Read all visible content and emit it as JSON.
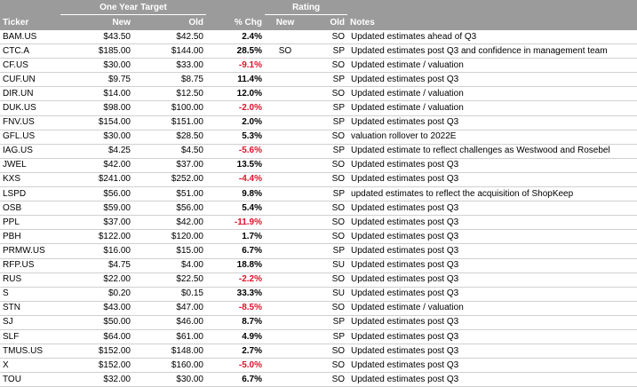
{
  "header": {
    "one_year_target": "One Year Target",
    "rating": "Rating",
    "ticker": "Ticker",
    "new": "New",
    "old": "Old",
    "pct_chg": "% Chg",
    "rating_new": "New",
    "rating_old": "Old",
    "notes": "Notes"
  },
  "rows": [
    {
      "ticker": "BAM.US",
      "new": "$43.50",
      "old": "$42.50",
      "chg": "2.4%",
      "negative": false,
      "rating_new": "",
      "rating_old": "SO",
      "notes": "Updated estimates ahead of Q3"
    },
    {
      "ticker": "CTC.A",
      "new": "$185.00",
      "old": "$144.00",
      "chg": "28.5%",
      "negative": false,
      "rating_new": "SO",
      "rating_old": "SP",
      "notes": "Updated estimates post Q3 and confidence in management team"
    },
    {
      "ticker": "CF.US",
      "new": "$30.00",
      "old": "$33.00",
      "chg": "-9.1%",
      "negative": true,
      "rating_new": "",
      "rating_old": "SO",
      "notes": "Updated estimate / valuation"
    },
    {
      "ticker": "CUF.UN",
      "new": "$9.75",
      "old": "$8.75",
      "chg": "11.4%",
      "negative": false,
      "rating_new": "",
      "rating_old": "SP",
      "notes": "Updated estimates post Q3"
    },
    {
      "ticker": "DIR.UN",
      "new": "$14.00",
      "old": "$12.50",
      "chg": "12.0%",
      "negative": false,
      "rating_new": "",
      "rating_old": "SO",
      "notes": "Updated estimate / valuation"
    },
    {
      "ticker": "DUK.US",
      "new": "$98.00",
      "old": "$100.00",
      "chg": "-2.0%",
      "negative": true,
      "rating_new": "",
      "rating_old": "SP",
      "notes": "Updated estimate / valuation"
    },
    {
      "ticker": "FNV.US",
      "new": "$154.00",
      "old": "$151.00",
      "chg": "2.0%",
      "negative": false,
      "rating_new": "",
      "rating_old": "SP",
      "notes": "Updated estimates post Q3"
    },
    {
      "ticker": "GFL.US",
      "new": "$30.00",
      "old": "$28.50",
      "chg": "5.3%",
      "negative": false,
      "rating_new": "",
      "rating_old": "SO",
      "notes": "valuation rollover to 2022E"
    },
    {
      "ticker": "IAG.US",
      "new": "$4.25",
      "old": "$4.50",
      "chg": "-5.6%",
      "negative": true,
      "rating_new": "",
      "rating_old": "SP",
      "notes": "Updated estimate to reflect challenges as Westwood and Rosebel"
    },
    {
      "ticker": "JWEL",
      "new": "$42.00",
      "old": "$37.00",
      "chg": "13.5%",
      "negative": false,
      "rating_new": "",
      "rating_old": "SO",
      "notes": "Updated estimates post Q3"
    },
    {
      "ticker": "KXS",
      "new": "$241.00",
      "old": "$252.00",
      "chg": "-4.4%",
      "negative": true,
      "rating_new": "",
      "rating_old": "SO",
      "notes": "Updated estimates post Q3"
    },
    {
      "ticker": "LSPD",
      "new": "$56.00",
      "old": "$51.00",
      "chg": "9.8%",
      "negative": false,
      "rating_new": "",
      "rating_old": "SP",
      "notes": "updated estimates to reflect the acquisition of ShopKeep"
    },
    {
      "ticker": "OSB",
      "new": "$59.00",
      "old": "$56.00",
      "chg": "5.4%",
      "negative": false,
      "rating_new": "",
      "rating_old": "SO",
      "notes": "Updated estimates post Q3"
    },
    {
      "ticker": "PPL",
      "new": "$37.00",
      "old": "$42.00",
      "chg": "-11.9%",
      "negative": true,
      "rating_new": "",
      "rating_old": "SO",
      "notes": "Updated estimates post Q3"
    },
    {
      "ticker": "PBH",
      "new": "$122.00",
      "old": "$120.00",
      "chg": "1.7%",
      "negative": false,
      "rating_new": "",
      "rating_old": "SO",
      "notes": "Updated estimates post Q3"
    },
    {
      "ticker": "PRMW.US",
      "new": "$16.00",
      "old": "$15.00",
      "chg": "6.7%",
      "negative": false,
      "rating_new": "",
      "rating_old": "SP",
      "notes": "Updated estimates post Q3"
    },
    {
      "ticker": "RFP.US",
      "new": "$4.75",
      "old": "$4.00",
      "chg": "18.8%",
      "negative": false,
      "rating_new": "",
      "rating_old": "SU",
      "notes": "Updated estimates post Q3"
    },
    {
      "ticker": "RUS",
      "new": "$22.00",
      "old": "$22.50",
      "chg": "-2.2%",
      "negative": true,
      "rating_new": "",
      "rating_old": "SO",
      "notes": "Updated estimates post Q3"
    },
    {
      "ticker": "S",
      "new": "$0.20",
      "old": "$0.15",
      "chg": "33.3%",
      "negative": false,
      "rating_new": "",
      "rating_old": "SU",
      "notes": "Updated estimates post Q3"
    },
    {
      "ticker": "STN",
      "new": "$43.00",
      "old": "$47.00",
      "chg": "-8.5%",
      "negative": true,
      "rating_new": "",
      "rating_old": "SO",
      "notes": "Updated estimate / valuation"
    },
    {
      "ticker": "SJ",
      "new": "$50.00",
      "old": "$46.00",
      "chg": "8.7%",
      "negative": false,
      "rating_new": "",
      "rating_old": "SP",
      "notes": "Updated estimates post Q3"
    },
    {
      "ticker": "SLF",
      "new": "$64.00",
      "old": "$61.00",
      "chg": "4.9%",
      "negative": false,
      "rating_new": "",
      "rating_old": "SP",
      "notes": "Updated estimates post Q3"
    },
    {
      "ticker": "TMUS.US",
      "new": "$152.00",
      "old": "$148.00",
      "chg": "2.7%",
      "negative": false,
      "rating_new": "",
      "rating_old": "SO",
      "notes": "Updated estimates post Q3"
    },
    {
      "ticker": "X",
      "new": "$152.00",
      "old": "$160.00",
      "chg": "-5.0%",
      "negative": true,
      "rating_new": "",
      "rating_old": "SO",
      "notes": "Updated estimates post Q3"
    },
    {
      "ticker": "TOU",
      "new": "$32.00",
      "old": "$30.00",
      "chg": "6.7%",
      "negative": false,
      "rating_new": "",
      "rating_old": "SO",
      "notes": "Updated estimates post Q3"
    }
  ]
}
